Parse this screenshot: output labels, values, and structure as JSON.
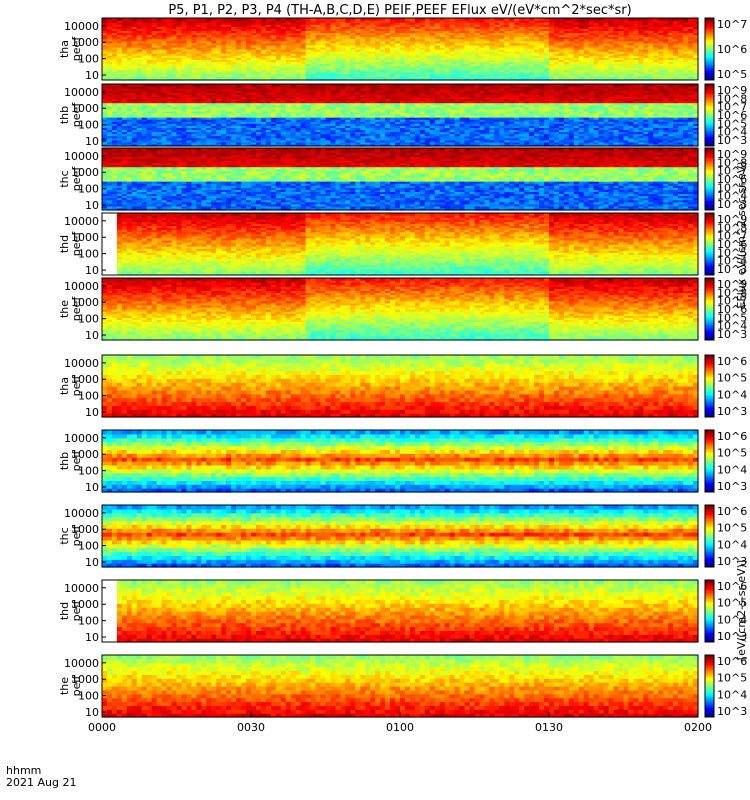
{
  "title": "P5, P1, P2, P3, P4 (TH-A,B,C,D,E) PEIF,PEEF EFlux eV/(eV*cm^2*sec*sr)",
  "footer": {
    "time_label": "hhmm",
    "date_label": "2021 Aug 21"
  },
  "colorbar_labels": {
    "electron": "EFlux eV/(cm^2-sec-sr-eV)",
    "ion": "[eV/(cm2-s-sr-eV)]"
  },
  "chart_data": {
    "type": "heatmap",
    "x_ticks": [
      "0000",
      "0030",
      "0100",
      "0130",
      "0200"
    ],
    "ylim": [
      5,
      30000
    ],
    "y_scale": "log",
    "y_ticks": [
      "10",
      "100",
      "1000",
      "10000"
    ],
    "panels": [
      {
        "probe": "tha",
        "product": "peef",
        "cb_ticks": [
          "10^7",
          "10^6",
          "10^5"
        ]
      },
      {
        "probe": "thb",
        "product": "peef",
        "cb_ticks": [
          "10^9",
          "10^8",
          "10^7",
          "10^6",
          "10^5",
          "10^4",
          "10^3"
        ]
      },
      {
        "probe": "thc",
        "product": "peef",
        "cb_ticks": [
          "10^9",
          "10^8",
          "10^7",
          "10^6",
          "10^5",
          "10^4",
          "10^3"
        ]
      },
      {
        "probe": "thd",
        "product": "peef",
        "cb_ticks": [
          "10^9",
          "10^8",
          "10^7",
          "10^6",
          "10^5",
          "10^4",
          "10^3"
        ]
      },
      {
        "probe": "the",
        "product": "peef",
        "cb_ticks": [
          "10^9",
          "10^8",
          "10^7",
          "10^6",
          "10^5",
          "10^4",
          "10^3"
        ]
      },
      {
        "probe": "tha",
        "product": "peif",
        "cb_ticks": [
          "10^6",
          "10^5",
          "10^4",
          "10^3"
        ]
      },
      {
        "probe": "thb",
        "product": "peif",
        "cb_ticks": [
          "10^6",
          "10^5",
          "10^4",
          "10^3"
        ]
      },
      {
        "probe": "thc",
        "product": "peif",
        "cb_ticks": [
          "10^6",
          "10^5",
          "10^4",
          "10^3"
        ]
      },
      {
        "probe": "thd",
        "product": "peif",
        "cb_ticks": [
          "10^6",
          "10^5",
          "10^4",
          "10^3"
        ]
      },
      {
        "probe": "the",
        "product": "peif",
        "cb_ticks": [
          "10^6",
          "10^5",
          "10^4",
          "10^3"
        ]
      }
    ]
  }
}
